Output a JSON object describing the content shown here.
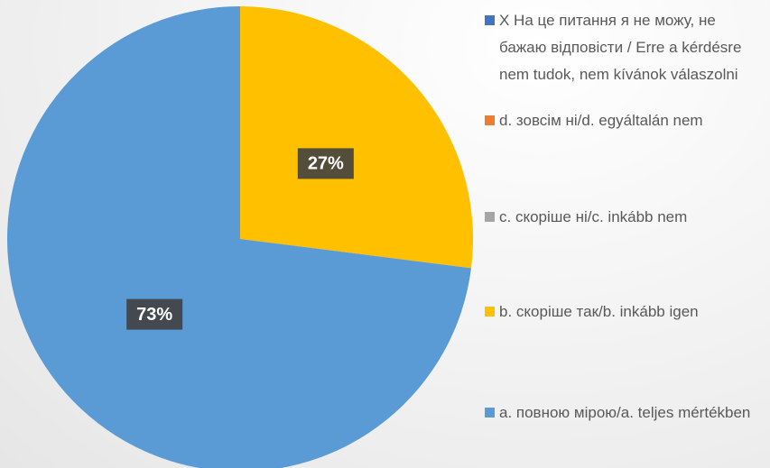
{
  "chart_data": {
    "type": "pie",
    "categories": [
      "X На це питання я не можу, не бажаю відповісти / Erre a kérdésre nem tudok, nem kívánok válaszolni",
      "d. зовсім ні/d. egyáltalán nem",
      "c. скоріше ні/c. inkább nem",
      "b. скоріше так/b. inkább igen",
      "a. повною мірою/a. teljes mértékben"
    ],
    "values": [
      0,
      0,
      0,
      27,
      73
    ],
    "value_labels": [
      null,
      null,
      null,
      "27%",
      "73%"
    ],
    "colors": [
      "#4472c4",
      "#ed7d31",
      "#a5a5a5",
      "#ffc000",
      "#5b9bd5"
    ],
    "legend": "right"
  }
}
